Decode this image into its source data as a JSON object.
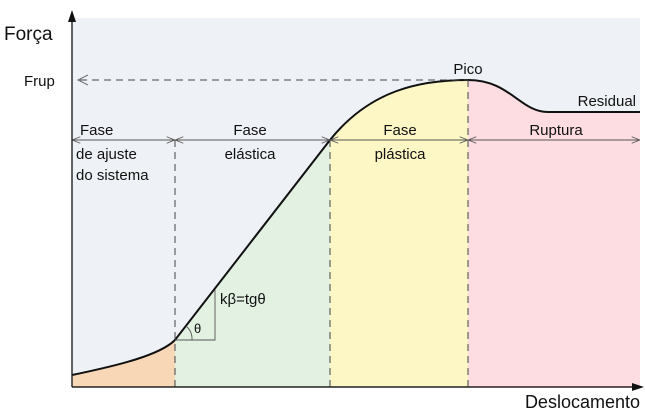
{
  "axes": {
    "y_label": "Força",
    "x_label": "Deslocamento"
  },
  "labels": {
    "frup": "Frup",
    "pico": "Pico",
    "residual": "Residual",
    "slope": "kβ=tgθ",
    "angle": "θ"
  },
  "phases": [
    {
      "lines": [
        "Fase",
        "de ajuste",
        "do sistema"
      ]
    },
    {
      "lines": [
        "Fase",
        "elástica"
      ]
    },
    {
      "lines": [
        "Fase",
        "plástica"
      ]
    },
    {
      "lines": [
        "Ruptura"
      ]
    }
  ]
}
